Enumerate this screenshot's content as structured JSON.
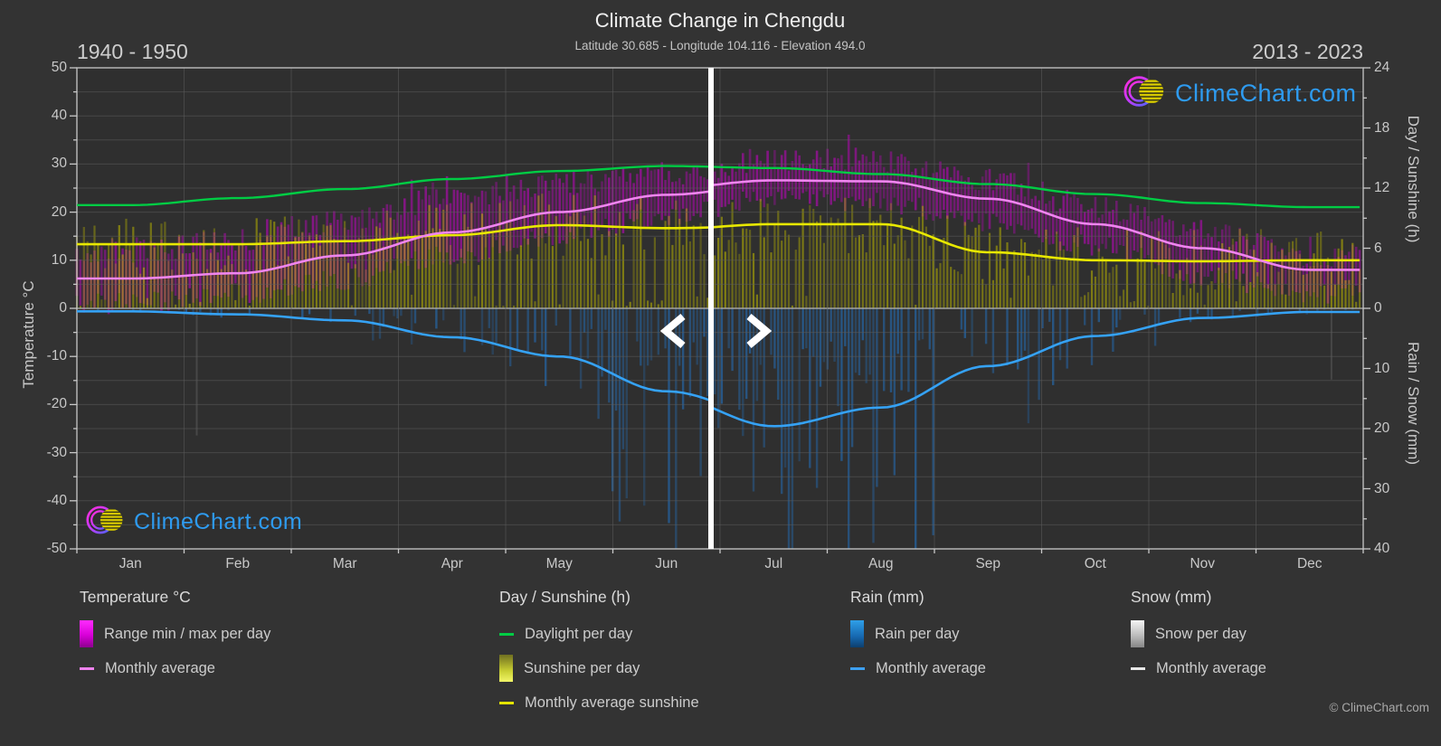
{
  "header": {
    "title": "Climate Change in Chengdu",
    "subtitle": "Latitude 30.685 - Longitude 104.116 - Elevation 494.0",
    "period_left": "1940 - 1950",
    "period_right": "2013 - 2023"
  },
  "brand": {
    "wordmark": "ClimeChart.com",
    "copyright": "© ClimeChart.com",
    "wordmark_color": "#2e9bf0"
  },
  "nav": {
    "prev_icon": "chevron-left-icon",
    "next_icon": "chevron-right-icon"
  },
  "legend": {
    "columns": [
      {
        "header": "Temperature °C",
        "items": [
          {
            "swatch": "gradient-magenta",
            "label": "Range min / max per day"
          },
          {
            "swatch": "line-pink",
            "label": "Monthly average"
          }
        ]
      },
      {
        "header": "Day / Sunshine (h)",
        "items": [
          {
            "swatch": "line-green",
            "label": "Daylight per day"
          },
          {
            "swatch": "gradient-yellow",
            "label": "Sunshine per day"
          },
          {
            "swatch": "line-yellow",
            "label": "Monthly average sunshine"
          }
        ]
      },
      {
        "header": "Rain (mm)",
        "items": [
          {
            "swatch": "gradient-blue",
            "label": "Rain per day"
          },
          {
            "swatch": "line-blue",
            "label": "Monthly average"
          }
        ]
      },
      {
        "header": "Snow (mm)",
        "items": [
          {
            "swatch": "gradient-white",
            "label": "Snow per day"
          },
          {
            "swatch": "line-white",
            "label": "Monthly average"
          }
        ]
      }
    ]
  },
  "chart_data": {
    "type": "bar",
    "subtype": "climate-composite",
    "title": "Climate Change in Chengdu",
    "months": [
      "Jan",
      "Feb",
      "Mar",
      "Apr",
      "May",
      "Jun",
      "Jul",
      "Aug",
      "Sep",
      "Oct",
      "Nov",
      "Dec"
    ],
    "temp_axis": {
      "label": "Temperature °C",
      "range": [
        -50,
        50
      ],
      "ticks": [
        50,
        40,
        30,
        20,
        10,
        0,
        -10,
        -20,
        -30,
        -40,
        -50
      ],
      "minor_step": 5
    },
    "day_axis": {
      "label": "Day / Sunshine (h)",
      "range": [
        0,
        24
      ],
      "ticks": [
        24,
        18,
        12,
        6,
        0
      ],
      "minor_ticks": [
        21,
        15,
        9,
        3
      ]
    },
    "rain_axis": {
      "label": "Rain / Snow (mm)",
      "range": [
        0,
        40
      ],
      "ticks": [
        10,
        20,
        30,
        40
      ],
      "minor_ticks": [
        5,
        15,
        25,
        35
      ]
    },
    "divider_day_of_year": 180,
    "grid": true,
    "series": {
      "daylight_h": [
        10.3,
        11.0,
        11.9,
        12.9,
        13.7,
        14.2,
        14.0,
        13.4,
        12.4,
        11.4,
        10.5,
        10.1
      ],
      "temp_avg_1940_1950": [
        6.2,
        7.3,
        11.0,
        15.8,
        20.0,
        23.6,
        25.6,
        25.0,
        21.0,
        16.0,
        11.0,
        7.0
      ],
      "temp_avg_2013_2023": [
        7.2,
        8.6,
        12.5,
        17.5,
        21.5,
        25.0,
        26.6,
        26.4,
        22.8,
        17.5,
        12.5,
        8.0
      ],
      "sunshine_avg_h_1940_1950": [
        6.4,
        6.4,
        6.7,
        7.3,
        8.3,
        8.0,
        8.2,
        8.2,
        6.2,
        5.2,
        4.9,
        4.9
      ],
      "sunshine_avg_h_2013_2023": [
        5.0,
        5.2,
        5.9,
        6.9,
        7.7,
        7.9,
        8.4,
        8.4,
        5.6,
        4.8,
        4.7,
        4.8
      ],
      "rain_avg_mm_1940_1950": [
        0.5,
        1.0,
        2.0,
        4.8,
        8.0,
        13.8,
        18.0,
        15.0,
        9.0,
        4.2,
        1.4,
        0.5
      ],
      "rain_avg_mm_2013_2023": [
        0.6,
        1.2,
        2.2,
        5.0,
        8.6,
        14.6,
        19.6,
        16.5,
        9.6,
        4.6,
        1.6,
        0.6
      ],
      "temp_min_daily_mean": [
        1,
        3,
        6,
        11,
        15,
        19,
        23,
        22,
        18,
        13,
        7,
        3
      ],
      "temp_max_daily_mean": [
        12,
        14,
        18,
        23,
        26,
        28,
        31,
        31,
        27,
        21,
        16,
        11
      ],
      "sunshine_daily_mean_h": [
        6.4,
        6.4,
        6.7,
        7.3,
        8.3,
        8.0,
        8.4,
        8.4,
        5.6,
        4.8,
        4.7,
        4.8
      ],
      "rain_daily_mean_mm": [
        0.5,
        1.0,
        2.0,
        4.8,
        8.0,
        13.8,
        19.6,
        16.5,
        9.6,
        4.6,
        1.6,
        0.6
      ]
    },
    "colors": {
      "daylight_line": "#00cc44",
      "temp_avg_line": "#ef85ef",
      "sunshine_avg_line": "#e8e800",
      "rain_avg_line": "#35a2f5",
      "temp_range_bar": "#d000d0",
      "sunshine_bar": "#b9b400",
      "rain_bar": "#2277cc",
      "snow_bar": "#cfcfcf",
      "divider": "#ffffff",
      "grid_line": "#5c5c5c",
      "zero_line": "#a8a8a8",
      "frame": "#bdbdbd",
      "plot_bg": "#2f2f2f",
      "page_bg": "#333333"
    }
  }
}
